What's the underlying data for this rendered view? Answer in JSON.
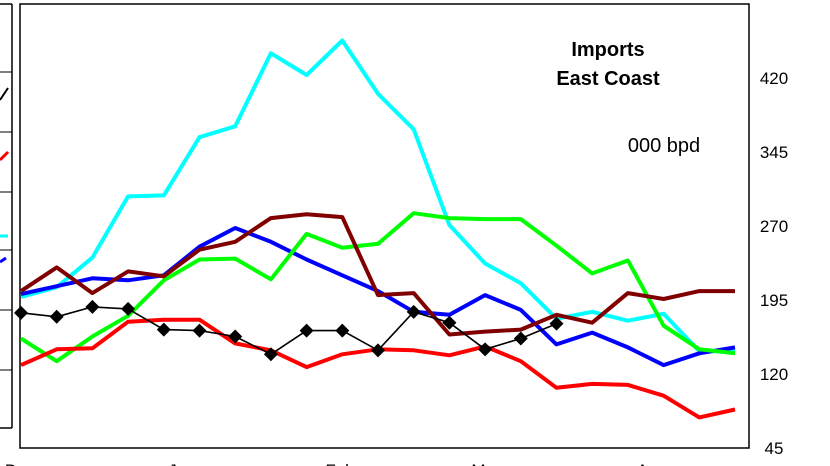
{
  "chart_data": {
    "type": "line",
    "title_lines": [
      "Imports",
      "East Coast"
    ],
    "unit_label": "000 bpd",
    "x_tick_labels": [
      "Dec",
      "Jan",
      "Feb",
      "Mar",
      "Apr"
    ],
    "y_ticks": [
      "45",
      "120",
      "195",
      "270",
      "345",
      "420"
    ],
    "ylim": [
      45,
      495
    ],
    "grid": false,
    "series": [
      {
        "color": "#00ffff",
        "markers": false,
        "values": [
          198,
          208,
          238,
          300,
          301,
          360,
          371,
          445,
          423,
          458,
          404,
          368,
          271,
          232,
          212,
          176,
          183,
          174,
          181,
          143,
          143
        ]
      },
      {
        "color": "#0000ff",
        "markers": false,
        "values": [
          201,
          209,
          217,
          215,
          220,
          249,
          268,
          254,
          236,
          220,
          204,
          183,
          180,
          200,
          185,
          150,
          162,
          147,
          129,
          141,
          147
        ]
      },
      {
        "color": "#00ff00",
        "markers": false,
        "values": [
          156,
          133,
          158,
          179,
          215,
          236,
          237,
          216,
          262,
          248,
          252,
          283,
          278,
          277,
          277,
          250,
          222,
          235,
          169,
          145,
          141
        ]
      },
      {
        "color": "#800000",
        "markers": false,
        "values": [
          204,
          228,
          202,
          224,
          219,
          246,
          254,
          278,
          282,
          279,
          200,
          202,
          160,
          163,
          165,
          180,
          172,
          202,
          196,
          204,
          204
        ]
      },
      {
        "color": "#ff0000",
        "markers": false,
        "values": [
          129,
          145,
          146,
          173,
          175,
          175,
          151,
          144,
          127,
          140,
          145,
          144,
          139,
          148,
          133,
          106,
          110,
          109,
          98,
          76,
          84
        ]
      },
      {
        "color": "#000000",
        "markers": true,
        "values": [
          182,
          178,
          188,
          186,
          165,
          164,
          158,
          140,
          164,
          164,
          144,
          183,
          172,
          145,
          156,
          171
        ]
      }
    ]
  }
}
